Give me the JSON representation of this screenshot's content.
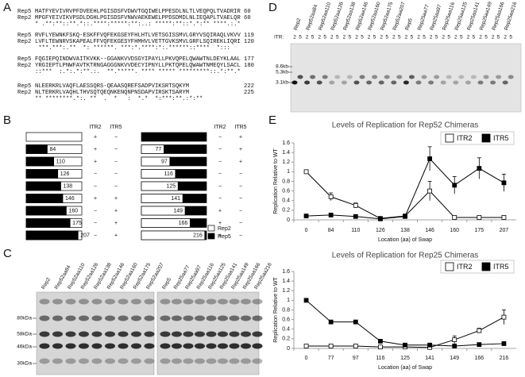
{
  "panel_labels": [
    "A",
    "B",
    "C",
    "D",
    "E"
  ],
  "alignment": {
    "rows": [
      {
        "name": "Rep5",
        "seq": "MATFYEVIVRVPFDVEEHLPGISDSFVDWVTGQIWELPPESDLNLTLVEQPQLTVADRIR",
        "end": "60"
      },
      {
        "name": "Rep2",
        "seq": "MPGFYEIVIKVPSDLDGHLPGISDSFVNWVAEKEWELPPDSDMDLNLIEQAPLTVAELQR",
        "end": "60"
      },
      {
        "seq": "* .**:**::**.*::.****:*****:**:..: *****:**::*.*:** ****.:.*"
      },
      {
        "name": "Rep5",
        "seq": "RVFLYEWNKFSKQ-ESKFFVQFEKGSEYFHLHTLVETSGISSMVLGRYVSQIRAQLVKVV",
        "end": "119"
      },
      {
        "name": "Rep2",
        "seq": "LVFLTEWNRVSKAPEALFFVQFEKGESYFHMHVLVETTGVKSMVLGRFLSQIREKLIQRI",
        "end": "120"
      },
      {
        "seq": " ***.***:.**  *: ******. ***:*.****:*:.******::****  *:::  "
      },
      {
        "name": "Rep5",
        "seq": "FQGIEPQINDWVAITKVKK--GGANKVVDSGYIPAYLLPKVQPELQWAWTNLDEYKLAAL",
        "end": "177"
      },
      {
        "name": "Rep2",
        "seq": "YRGIEPTLPNWFAVTKTRNGAGGGNKVVDECYIPNYLLPKTQPELQWAWTNMEQYLSACL",
        "end": "180"
      },
      {
        "seq": "::***  :.*:.*:**.:.  **.*****. **** ***** *********::.*:**.*"
      },
      {
        "name": "Rep5",
        "seq": "NLEERKRLVAQFLAESSQRS-QEAASQREFSADPVIKSRTSQKYM",
        "end": "222"
      },
      {
        "name": "Rep2",
        "seq": "NLTERKRLVAQHLTHVSQTQEQNKENQNPNSDAPVIRSKTSARYM",
        "end": "225"
      },
      {
        "seq": "** ********.*:. **  .  *   :  *.*  *:***:**.:*:**"
      }
    ]
  },
  "swap_diagram": {
    "columns": [
      "ITR2",
      "ITR5"
    ],
    "left": [
      {
        "itr2": "+",
        "itr5": "−"
      },
      {
        "swap": 84,
        "itr2": "+",
        "itr5": "−"
      },
      {
        "swap": 110,
        "itr2": "+",
        "itr5": "−"
      },
      {
        "swap": 126,
        "itr2": "−",
        "itr5": "−"
      },
      {
        "swap": 138,
        "itr2": "−",
        "itr5": "−"
      },
      {
        "swap": 146,
        "itr2": "+",
        "itr5": "+"
      },
      {
        "swap": 160,
        "itr2": "−",
        "itr5": "+"
      },
      {
        "swap": 175,
        "itr2": "−",
        "itr5": "+"
      },
      {
        "swap": 207,
        "itr2": "−",
        "itr5": "+"
      }
    ],
    "right": [
      {
        "itr2": "−",
        "itr5": "+"
      },
      {
        "swap": 77,
        "itr2": "−",
        "itr5": "+"
      },
      {
        "swap": 97,
        "itr2": "−",
        "itr5": "+"
      },
      {
        "swap": 116,
        "itr2": "−",
        "itr5": "−"
      },
      {
        "swap": 125,
        "itr2": "−",
        "itr5": "−"
      },
      {
        "swap": 141,
        "itr2": "−",
        "itr5": "−"
      },
      {
        "swap": 149,
        "itr2": "+",
        "itr5": "−"
      },
      {
        "swap": 166,
        "itr2": "+",
        "itr5": "−"
      },
      {
        "swap": 216,
        "itr2": "+",
        "itr5": "−"
      }
    ],
    "legend": [
      "Rep2",
      "Rep5"
    ]
  },
  "western": {
    "lanes": [
      "Rep2",
      "Rep52aa84",
      "Rep52aa110",
      "Rep52aa126",
      "Rep52aa138",
      "Rep52aa146",
      "Rep52aa160",
      "Rep52aa175",
      "Rep52aa207",
      "Rep5",
      "Rep25aa77",
      "Rep25aa97",
      "Rep25aa116",
      "Rep25aa125",
      "Rep25aa141",
      "Rep25aa149",
      "Rep25aa166",
      "Rep25aa216"
    ],
    "markers": [
      "80kDa",
      "58kDa",
      "46kDa",
      "30kDa"
    ]
  },
  "southern": {
    "lanes": [
      "Rep2",
      "Rep52aa84",
      "Rep52aa110",
      "Rep52aa126",
      "Rep52aa138",
      "Rep52aa146",
      "Rep52aa160",
      "Rep52aa175",
      "Rep52aa207",
      "Rep5",
      "Rep25aa77",
      "Rep25aa97",
      "Rep25aa116",
      "Rep25aa125",
      "Rep25aa141",
      "Rep25aa149",
      "Rep25aa166",
      "Rep25aa216"
    ],
    "itr_label": "ITR:",
    "itr_values": [
      "2",
      "5"
    ],
    "markers": [
      "8.6kb",
      "5.3kb",
      "3.1kb"
    ]
  },
  "chart_data": [
    {
      "type": "line",
      "title": "Levels of Replication for Rep52 Chimeras",
      "x_label": "Location (aa) of Swap",
      "y_label": "Replication Relative to WT",
      "categories": [
        "0",
        "84",
        "110",
        "126",
        "138",
        "146",
        "160",
        "175",
        "207"
      ],
      "ylim": [
        0,
        1.6
      ],
      "yticks": [
        0,
        0.2,
        0.4,
        0.6,
        0.8,
        1,
        1.2,
        1.4,
        1.6
      ],
      "legend": "top-right",
      "series": [
        {
          "name": "ITR2",
          "color": "#ffffff",
          "values": [
            1,
            0.48,
            0.3,
            0.03,
            0.08,
            0.6,
            0.05,
            0.05,
            0.05
          ],
          "errors": [
            0,
            0.08,
            0.05,
            0,
            0,
            0.2,
            0,
            0,
            0
          ]
        },
        {
          "name": "ITR5",
          "color": "#000000",
          "values": [
            0.08,
            0.1,
            0.07,
            0.02,
            0.07,
            1.27,
            0.72,
            1.07,
            0.77
          ],
          "errors": [
            0,
            0,
            0,
            0,
            0,
            0.25,
            0.18,
            0.22,
            0.18
          ]
        }
      ]
    },
    {
      "type": "line",
      "title": "Levels of Replication for Rep25 Chimeras",
      "x_label": "Location (aa) of Swap",
      "y_label": "Replication Relative to WT",
      "categories": [
        "0",
        "77",
        "97",
        "116",
        "125",
        "141",
        "149",
        "166",
        "216"
      ],
      "ylim": [
        0,
        1.6
      ],
      "yticks": [
        0,
        0.2,
        0.4,
        0.6,
        0.8,
        1,
        1.2,
        1.4,
        1.6
      ],
      "legend": "top-right",
      "series": [
        {
          "name": "ITR2",
          "color": "#ffffff",
          "values": [
            0.05,
            0.05,
            0.05,
            0.03,
            0.03,
            0.02,
            0.18,
            0.37,
            0.65
          ],
          "errors": [
            0,
            0,
            0,
            0,
            0,
            0,
            0.08,
            0.05,
            0.15
          ]
        },
        {
          "name": "ITR5",
          "color": "#000000",
          "values": [
            1,
            0.55,
            0.55,
            0.15,
            0.07,
            0.07,
            0.05,
            0.08,
            0.1
          ],
          "errors": [
            0,
            0.03,
            0.03,
            0,
            0,
            0,
            0,
            0,
            0
          ]
        }
      ]
    }
  ]
}
